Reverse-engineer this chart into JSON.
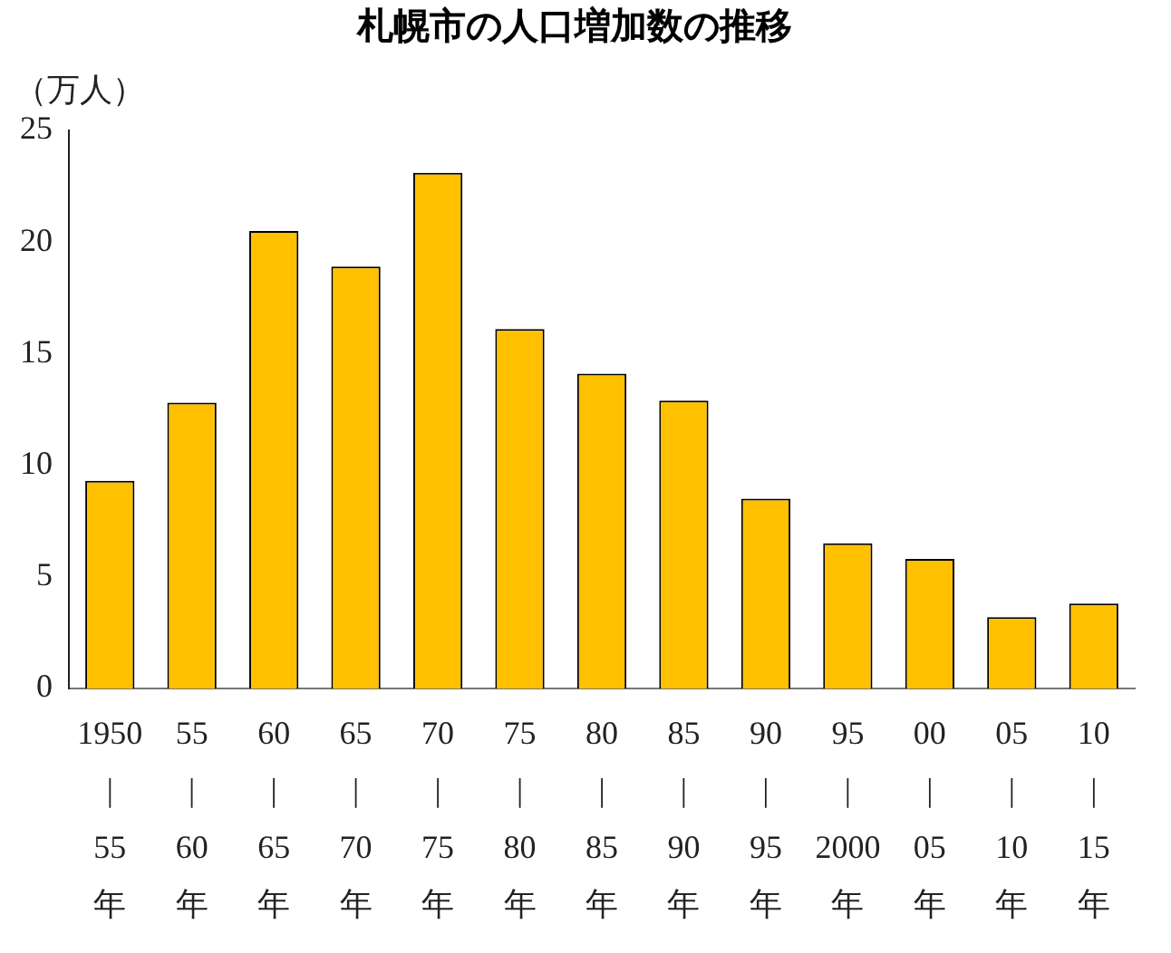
{
  "chart_data": {
    "type": "bar",
    "title": "札幌市の人口増加数の推移",
    "ylabel": "（万人）",
    "categories": [
      "1950\n|\n55\n年",
      "55\n|\n60\n年",
      "60\n|\n65\n年",
      "65\n|\n70\n年",
      "70\n|\n75\n年",
      "75\n|\n80\n年",
      "80\n|\n85\n年",
      "85\n|\n90\n年",
      "90\n|\n95\n年",
      "95\n|\n2000\n年",
      "00\n|\n05\n年",
      "05\n|\n10\n年",
      "10\n|\n15\n年"
    ],
    "values": [
      9.3,
      12.8,
      20.5,
      18.9,
      23.1,
      16.1,
      14.1,
      12.9,
      8.5,
      6.5,
      5.8,
      3.2,
      3.8
    ],
    "color": "#ffc000",
    "ylim": [
      0,
      25
    ],
    "yticks": [
      0,
      5,
      10,
      15,
      20,
      25
    ],
    "grid": false,
    "legend": false
  }
}
